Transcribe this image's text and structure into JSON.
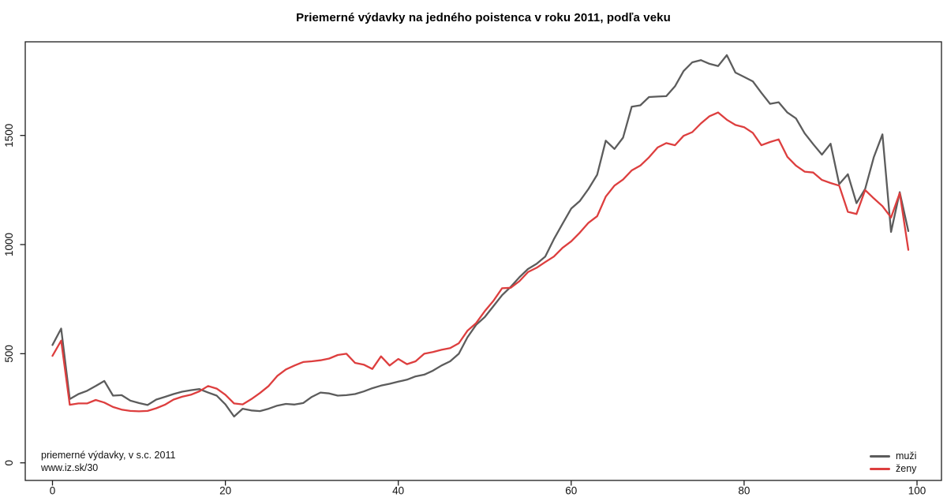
{
  "chart_data": {
    "type": "line",
    "title": "Priemerné výdavky na jedného poistenca v roku 2011, podľa veku",
    "xlabel": "",
    "ylabel": "",
    "x_ticks": [
      0,
      20,
      40,
      60,
      80,
      100
    ],
    "y_ticks": [
      0,
      500,
      1000,
      1500
    ],
    "xlim": [
      -4,
      103
    ],
    "ylim": [
      -80,
      1930
    ],
    "grid": false,
    "legend_position": "bottom-right",
    "x": [
      0,
      1,
      2,
      3,
      4,
      5,
      6,
      7,
      8,
      9,
      10,
      11,
      12,
      13,
      14,
      15,
      16,
      17,
      18,
      19,
      20,
      21,
      22,
      23,
      24,
      25,
      26,
      27,
      28,
      29,
      30,
      31,
      32,
      33,
      34,
      35,
      36,
      37,
      38,
      39,
      40,
      41,
      42,
      43,
      44,
      45,
      46,
      47,
      48,
      49,
      50,
      51,
      52,
      53,
      54,
      55,
      56,
      57,
      58,
      59,
      60,
      61,
      62,
      63,
      64,
      65,
      66,
      67,
      68,
      69,
      70,
      71,
      72,
      73,
      74,
      75,
      76,
      77,
      78,
      79,
      80,
      81,
      82,
      83,
      84,
      85,
      86,
      87,
      88,
      89,
      90,
      91,
      92,
      93,
      94,
      95,
      96,
      97,
      98,
      99
    ],
    "series": [
      {
        "name": "muži",
        "color": "#5c5c5c",
        "values": [
          540,
          615,
          292,
          315,
          330,
          352,
          375,
          308,
          310,
          285,
          274,
          265,
          290,
          302,
          315,
          326,
          333,
          338,
          322,
          308,
          268,
          212,
          248,
          240,
          237,
          248,
          262,
          270,
          267,
          274,
          302,
          322,
          318,
          308,
          310,
          315,
          327,
          342,
          354,
          362,
          372,
          381,
          396,
          404,
          422,
          446,
          465,
          500,
          575,
          632,
          668,
          718,
          768,
          806,
          850,
          888,
          912,
          945,
          1025,
          1095,
          1165,
          1200,
          1255,
          1320,
          1476,
          1438,
          1490,
          1632,
          1638,
          1676,
          1678,
          1680,
          1725,
          1795,
          1835,
          1845,
          1828,
          1818,
          1868,
          1788,
          1768,
          1748,
          1695,
          1645,
          1652,
          1605,
          1578,
          1510,
          1460,
          1412,
          1462,
          1277,
          1322,
          1190,
          1255,
          1400,
          1505,
          1058,
          1240,
          1062
        ]
      },
      {
        "name": "ženy",
        "color": "#dd3e3e",
        "values": [
          490,
          560,
          266,
          272,
          272,
          288,
          276,
          256,
          244,
          238,
          236,
          238,
          250,
          266,
          290,
          303,
          312,
          328,
          352,
          340,
          312,
          272,
          268,
          292,
          320,
          352,
          398,
          428,
          446,
          462,
          465,
          470,
          478,
          494,
          500,
          458,
          450,
          430,
          488,
          446,
          476,
          452,
          465,
          500,
          508,
          518,
          526,
          548,
          605,
          640,
          695,
          742,
          800,
          802,
          832,
          874,
          894,
          920,
          945,
          985,
          1015,
          1055,
          1100,
          1130,
          1220,
          1270,
          1298,
          1340,
          1362,
          1400,
          1445,
          1465,
          1455,
          1498,
          1515,
          1555,
          1588,
          1605,
          1572,
          1548,
          1538,
          1512,
          1455,
          1470,
          1482,
          1402,
          1362,
          1334,
          1330,
          1296,
          1282,
          1270,
          1150,
          1140,
          1250,
          1212,
          1176,
          1124,
          1236,
          976
        ]
      }
    ],
    "annotations": [
      "priemerné výdavky, v s.c. 2011",
      "www.iz.sk/30"
    ]
  },
  "footnote": {
    "line1": "priemerné výdavky, v s.c. 2011",
    "line2": "www.iz.sk/30"
  }
}
